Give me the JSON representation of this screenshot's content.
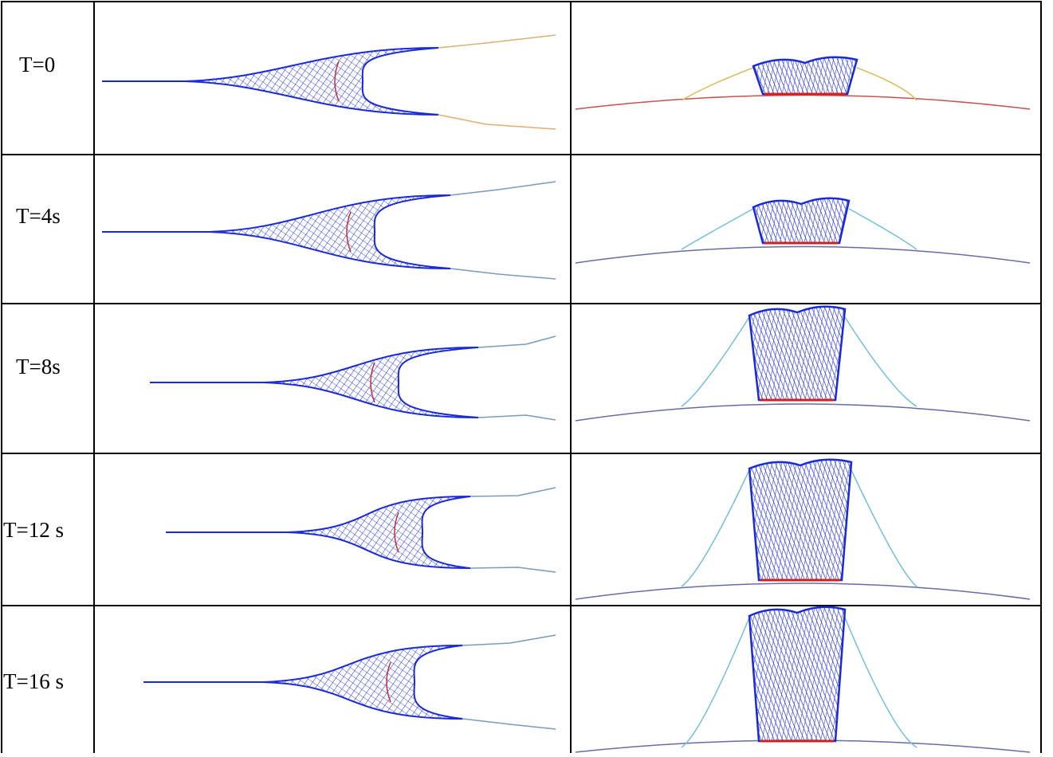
{
  "table": {
    "rows": [
      [
        "T=0"
      ],
      [
        "T=4s"
      ],
      [
        "T=8s"
      ],
      [
        "T=12 s"
      ],
      [
        "T=16 s"
      ]
    ]
  }
}
